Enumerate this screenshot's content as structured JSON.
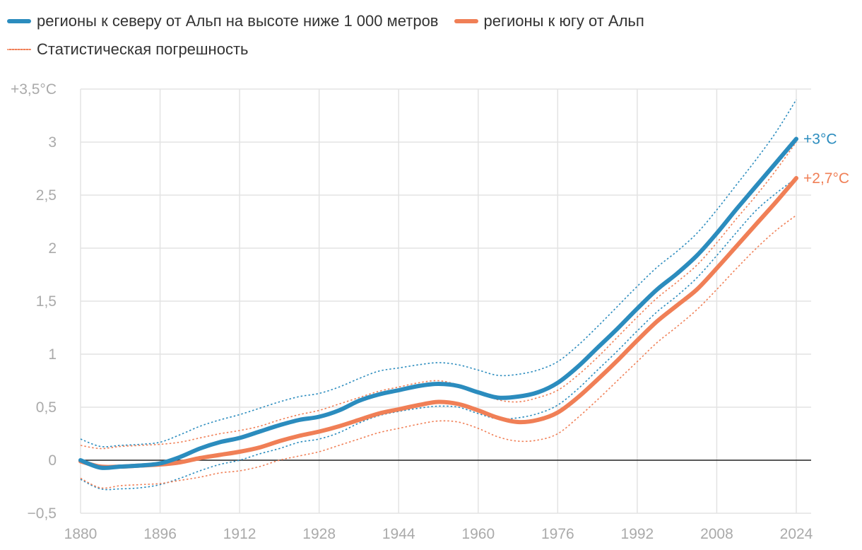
{
  "legend": {
    "north_label": "регионы к северу от Альп на высоте ниже 1 000 метров",
    "south_label": "регионы к югу от Альп",
    "error_label": "Статистическая погрешность"
  },
  "chart_data": {
    "type": "line",
    "xlim": [
      1880,
      2024
    ],
    "ylim": [
      -0.5,
      3.5
    ],
    "x_ticks": [
      1880,
      1896,
      1912,
      1928,
      1944,
      1960,
      1976,
      1992,
      2008,
      2024
    ],
    "y_ticks": [
      {
        "value": 3.5,
        "label": "+3,5°C"
      },
      {
        "value": 3,
        "label": "3"
      },
      {
        "value": 2.5,
        "label": "2,5"
      },
      {
        "value": 2,
        "label": "2"
      },
      {
        "value": 1.5,
        "label": "1,5"
      },
      {
        "value": 1,
        "label": "1"
      },
      {
        "value": 0.5,
        "label": "0,5"
      },
      {
        "value": 0,
        "label": "0"
      },
      {
        "value": -0.5,
        "label": "−0,5"
      }
    ],
    "grid": true,
    "zero_line": true,
    "series": [
      {
        "name": "регионы к северу от Альп на высоте ниже 1 000 метров",
        "color": "#2b8cbe",
        "end_label": "+3°C",
        "x": [
          1880,
          1884,
          1888,
          1892,
          1896,
          1900,
          1904,
          1908,
          1912,
          1916,
          1920,
          1924,
          1928,
          1932,
          1936,
          1940,
          1944,
          1948,
          1952,
          1956,
          1960,
          1964,
          1968,
          1972,
          1976,
          1980,
          1984,
          1988,
          1992,
          1996,
          2000,
          2004,
          2008,
          2012,
          2016,
          2020,
          2024
        ],
        "y": [
          0.0,
          -0.07,
          -0.06,
          -0.05,
          -0.03,
          0.03,
          0.11,
          0.17,
          0.21,
          0.27,
          0.33,
          0.38,
          0.41,
          0.47,
          0.56,
          0.62,
          0.66,
          0.7,
          0.72,
          0.7,
          0.64,
          0.59,
          0.6,
          0.64,
          0.73,
          0.88,
          1.06,
          1.24,
          1.43,
          1.61,
          1.76,
          1.93,
          2.14,
          2.37,
          2.59,
          2.81,
          3.03
        ],
        "upper": [
          0.2,
          0.13,
          0.14,
          0.15,
          0.17,
          0.24,
          0.32,
          0.38,
          0.43,
          0.49,
          0.55,
          0.6,
          0.63,
          0.69,
          0.77,
          0.84,
          0.87,
          0.9,
          0.92,
          0.9,
          0.85,
          0.8,
          0.81,
          0.85,
          0.93,
          1.08,
          1.26,
          1.45,
          1.64,
          1.82,
          1.97,
          2.14,
          2.36,
          2.6,
          2.84,
          3.1,
          3.4
        ],
        "lower": [
          -0.18,
          -0.27,
          -0.27,
          -0.26,
          -0.23,
          -0.17,
          -0.1,
          -0.04,
          0.0,
          0.06,
          0.11,
          0.17,
          0.2,
          0.26,
          0.35,
          0.42,
          0.46,
          0.49,
          0.51,
          0.5,
          0.44,
          0.39,
          0.4,
          0.44,
          0.52,
          0.67,
          0.85,
          1.03,
          1.22,
          1.4,
          1.55,
          1.72,
          1.93,
          2.15,
          2.36,
          2.52,
          2.66
        ]
      },
      {
        "name": "регионы к югу от Альп",
        "color": "#f07f56",
        "end_label": "+2,7°C",
        "x": [
          1880,
          1884,
          1888,
          1892,
          1896,
          1900,
          1904,
          1908,
          1912,
          1916,
          1920,
          1924,
          1928,
          1932,
          1936,
          1940,
          1944,
          1948,
          1952,
          1956,
          1960,
          1964,
          1968,
          1972,
          1976,
          1980,
          1984,
          1988,
          1992,
          1996,
          2000,
          2004,
          2008,
          2012,
          2016,
          2020,
          2024
        ],
        "y": [
          -0.01,
          -0.06,
          -0.06,
          -0.05,
          -0.04,
          -0.02,
          0.02,
          0.05,
          0.08,
          0.12,
          0.18,
          0.23,
          0.27,
          0.32,
          0.38,
          0.44,
          0.48,
          0.52,
          0.55,
          0.53,
          0.47,
          0.4,
          0.36,
          0.38,
          0.45,
          0.59,
          0.76,
          0.94,
          1.13,
          1.31,
          1.46,
          1.61,
          1.81,
          2.02,
          2.23,
          2.44,
          2.66
        ],
        "upper": [
          0.14,
          0.11,
          0.13,
          0.14,
          0.15,
          0.17,
          0.21,
          0.25,
          0.28,
          0.32,
          0.38,
          0.43,
          0.47,
          0.53,
          0.59,
          0.65,
          0.69,
          0.73,
          0.75,
          0.71,
          0.64,
          0.57,
          0.55,
          0.59,
          0.66,
          0.8,
          0.97,
          1.16,
          1.35,
          1.53,
          1.68,
          1.84,
          2.05,
          2.28,
          2.5,
          2.74,
          3.0
        ],
        "lower": [
          -0.17,
          -0.26,
          -0.24,
          -0.23,
          -0.22,
          -0.19,
          -0.16,
          -0.12,
          -0.1,
          -0.06,
          0.0,
          0.04,
          0.08,
          0.14,
          0.2,
          0.26,
          0.3,
          0.34,
          0.37,
          0.36,
          0.3,
          0.22,
          0.18,
          0.19,
          0.25,
          0.4,
          0.57,
          0.75,
          0.93,
          1.11,
          1.26,
          1.42,
          1.61,
          1.81,
          2.0,
          2.17,
          2.31
        ]
      }
    ]
  }
}
